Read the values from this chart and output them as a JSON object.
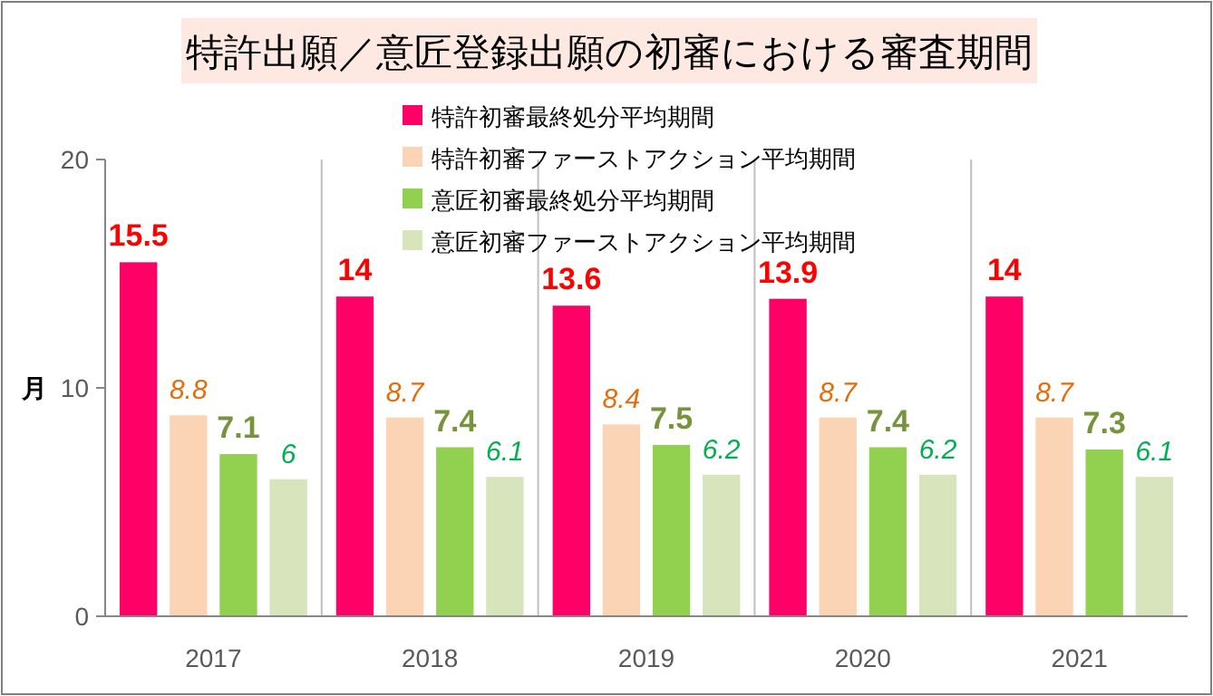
{
  "chart_data": {
    "type": "bar",
    "title": "特許出願／意匠登録出願の初審における審査期間",
    "ylabel": "月",
    "categories": [
      "2017",
      "2018",
      "2019",
      "2020",
      "2021"
    ],
    "series": [
      {
        "name": "特許初審最終処分平均期間",
        "color": "#ff0066",
        "values": [
          15.5,
          14,
          13.6,
          13.9,
          14
        ]
      },
      {
        "name": "特許初審ファーストアクション平均期間",
        "color": "#fad4b4",
        "values": [
          8.8,
          8.7,
          8.4,
          8.7,
          8.7
        ]
      },
      {
        "name": "意匠初審最終処分平均期間",
        "color": "#92d050",
        "values": [
          7.1,
          7.4,
          7.5,
          7.4,
          7.3
        ]
      },
      {
        "name": "意匠初審ファーストアクション平均期間",
        "color": "#d8e4bc",
        "values": [
          6,
          6.1,
          6.2,
          6.2,
          6.1
        ]
      }
    ],
    "ylim": [
      0,
      20
    ],
    "yticks": [
      0,
      10,
      20
    ],
    "grid": "x",
    "legend": "top right",
    "data_labels": true
  }
}
